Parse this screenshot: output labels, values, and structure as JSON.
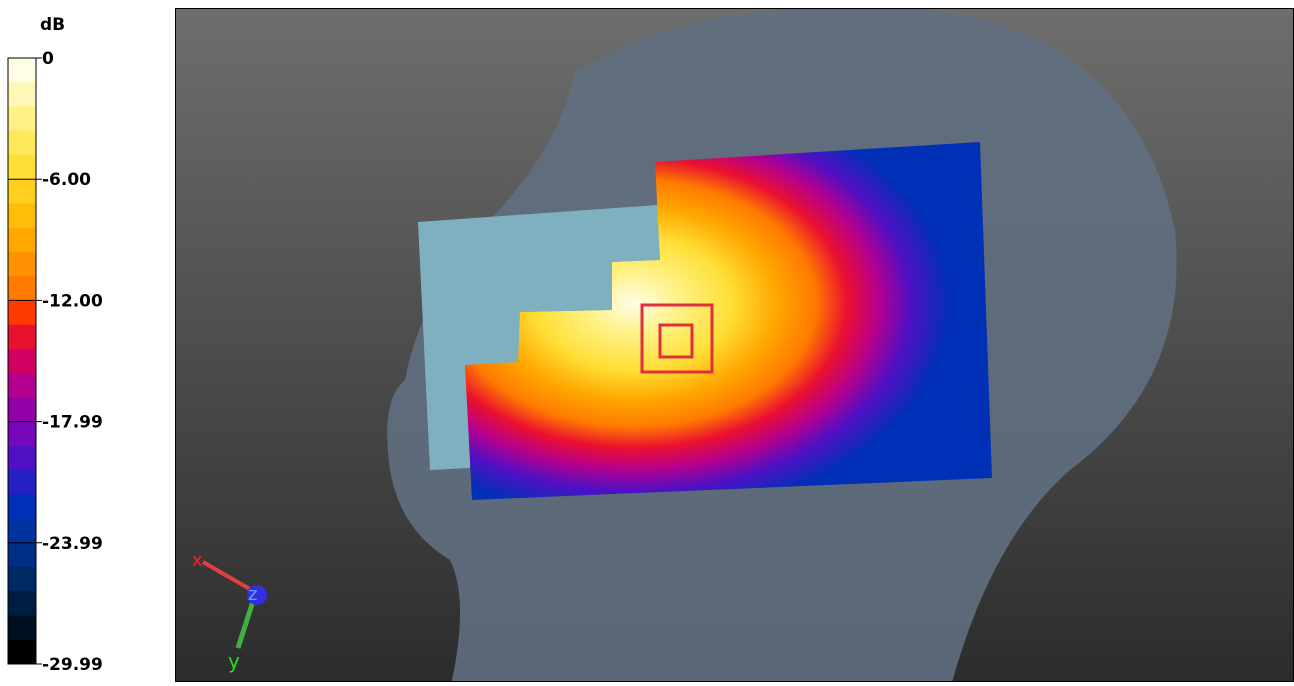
{
  "colorbar": {
    "unit": "dB",
    "labels": [
      "0",
      "-6.00",
      "-12.00",
      "-17.99",
      "-23.99",
      "-29.99"
    ],
    "colors": [
      "#fffde6",
      "#fff8b8",
      "#fff184",
      "#ffe85a",
      "#ffde35",
      "#ffcf1e",
      "#ffbd0a",
      "#ffa800",
      "#ff9200",
      "#ff7a00",
      "#ff3a00",
      "#ea1030",
      "#d20062",
      "#b4008e",
      "#9400a8",
      "#7408ba",
      "#5010c4",
      "#2420c4",
      "#0030b6",
      "#0032a2",
      "#002e84",
      "#002862",
      "#001e42",
      "#001022",
      "#000000"
    ]
  },
  "viewport": {
    "axes": [
      "x",
      "z",
      "y"
    ]
  }
}
